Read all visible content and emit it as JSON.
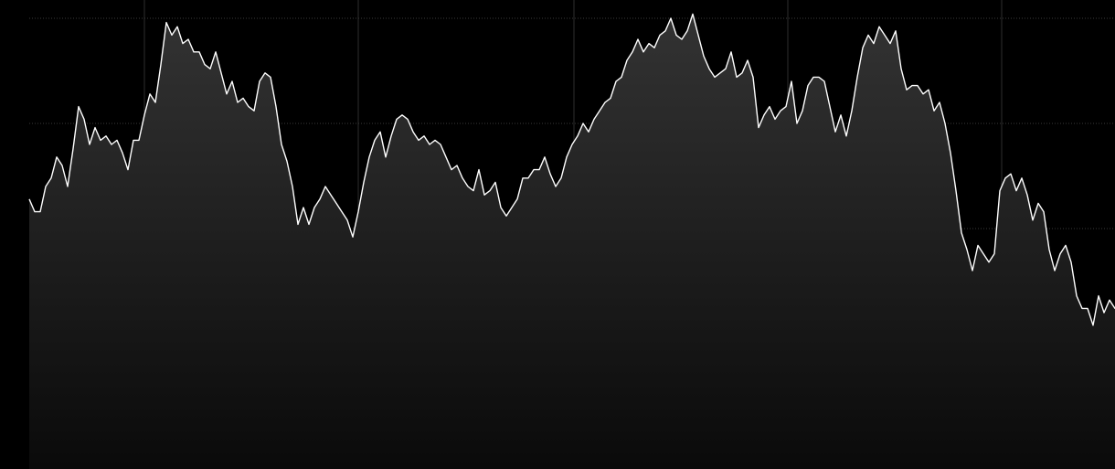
{
  "chart_data": {
    "type": "area",
    "title": "",
    "xlabel": "",
    "ylabel": "",
    "grid": true,
    "legend": "none",
    "ylim": [
      0,
      100
    ],
    "xlim": [
      0,
      197
    ],
    "colors": {
      "background": "#000000",
      "line": "#ffffff",
      "fill_top": "#333333",
      "fill_bottom": "#0a0a0a"
    },
    "series": [
      {
        "values": [
          57,
          54,
          54,
          60,
          62,
          67,
          65,
          60,
          69,
          79,
          76,
          70,
          74,
          71,
          72,
          70,
          71,
          68,
          64,
          71,
          71,
          77,
          82,
          80,
          89,
          99,
          96,
          98,
          94,
          95,
          92,
          92,
          89,
          88,
          92,
          87,
          82,
          85,
          80,
          81,
          79,
          78,
          85,
          87,
          86,
          79,
          70,
          66,
          60,
          51,
          55,
          51,
          55,
          57,
          60,
          58,
          56,
          54,
          52,
          48,
          54,
          61,
          67,
          71,
          73,
          67,
          72,
          76,
          77,
          76,
          73,
          71,
          72,
          70,
          71,
          70,
          67,
          64,
          65,
          62,
          60,
          59,
          64,
          58,
          59,
          61,
          55,
          53,
          55,
          57,
          62,
          62,
          64,
          64,
          67,
          63,
          60,
          62,
          67,
          70,
          72,
          75,
          73,
          76,
          78,
          80,
          81,
          85,
          86,
          90,
          92,
          95,
          92,
          94,
          93,
          96,
          97,
          100,
          96,
          95,
          97,
          101,
          96,
          91,
          88,
          86,
          87,
          88,
          92,
          86,
          87,
          90,
          86,
          74,
          77,
          79,
          76,
          78,
          79,
          85,
          75,
          78,
          84,
          86,
          86,
          85,
          79,
          73,
          77,
          72,
          78,
          86,
          93,
          96,
          94,
          98,
          96,
          94,
          97,
          88,
          83,
          84,
          84,
          82,
          83,
          78,
          80,
          75,
          68,
          59,
          49,
          45,
          40,
          46,
          44,
          42,
          44,
          59,
          62,
          63,
          59,
          62,
          58,
          52,
          56,
          54,
          45,
          40,
          44,
          46,
          42,
          34,
          31,
          31,
          27,
          34,
          30,
          33,
          31,
          32
        ]
      }
    ]
  }
}
